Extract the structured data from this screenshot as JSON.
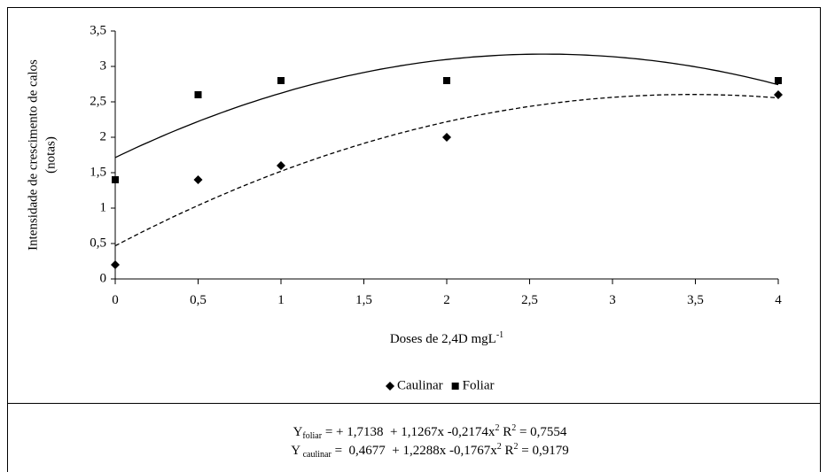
{
  "chart_data": {
    "type": "scatter",
    "x_label": {
      "text": "Doses de 2,4D mgL",
      "superscript": "-1"
    },
    "y_label": [
      "Intensidade de crescimento de calos",
      "(notas)"
    ],
    "xlim": [
      0,
      4
    ],
    "ylim": [
      0,
      3.5
    ],
    "xticks": [
      0,
      {
        "value": 0.5,
        "label": "0,5"
      },
      1,
      {
        "value": 1.5,
        "label": "1,5"
      },
      2,
      {
        "value": 2.5,
        "label": "2,5"
      },
      3,
      {
        "value": 3.5,
        "label": "3,5"
      },
      4
    ],
    "yticks": [
      0,
      {
        "value": 0.5,
        "label": "0,5"
      },
      1,
      {
        "value": 1.5,
        "label": "1,5"
      },
      2,
      {
        "value": 2.5,
        "label": "2,5"
      },
      3,
      {
        "value": 3.5,
        "label": "3,5"
      }
    ],
    "legend": "bottom",
    "series": [
      {
        "name": "Caulinar",
        "color": "#000000",
        "marker": "diamond",
        "line_style": "dashed",
        "x": [
          0,
          0.5,
          1,
          2,
          4
        ],
        "values": [
          0.2,
          1.4,
          1.6,
          2.0,
          2.6
        ],
        "trend_coefficients": [
          0.4677,
          1.2288,
          -0.1767
        ]
      },
      {
        "name": "Foliar",
        "color": "#000000",
        "marker": "square",
        "line_style": "solid",
        "x": [
          0,
          0.5,
          1,
          2,
          4
        ],
        "values": [
          1.4,
          2.6,
          2.8,
          2.8,
          2.8
        ],
        "trend_coefficients": [
          1.7138,
          1.1267,
          -0.2174
        ]
      }
    ],
    "equations": [
      [
        "Y",
        "foliar",
        " = + 1,7138  + 1,1267x -0,2174x",
        "2",
        " R",
        "2",
        " = 0,7554"
      ],
      [
        "Y",
        " caulinar",
        " =  0,4677  + 1,2288x -0,1767x",
        "2",
        " R",
        "2",
        " = 0,9179"
      ]
    ]
  }
}
